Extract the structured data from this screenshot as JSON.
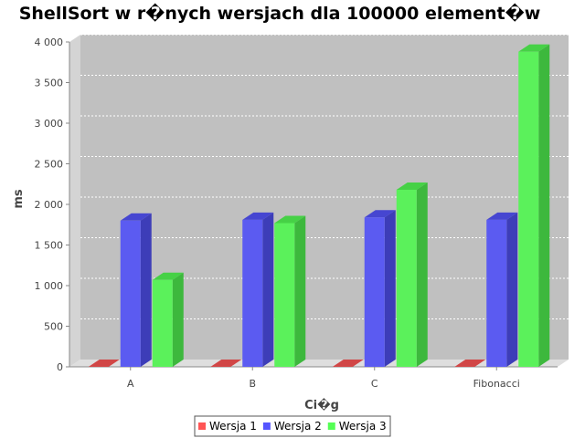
{
  "chart_data": {
    "type": "bar",
    "title": "ShellSort w r�nych wersjach dla 100000 element�w",
    "xlabel": "Ci�g",
    "ylabel": "ms",
    "categories": [
      "A",
      "B",
      "C",
      "Fibonacci"
    ],
    "series": [
      {
        "name": "Wersja 1",
        "values": [
          0,
          0,
          0,
          0
        ],
        "color": "#ff5555"
      },
      {
        "name": "Wersja 2",
        "values": [
          1800,
          1810,
          1840,
          1810
        ],
        "color": "#5555ff"
      },
      {
        "name": "Wersja 3",
        "values": [
          1070,
          1770,
          2180,
          3880
        ],
        "color": "#55ff55"
      }
    ],
    "ylim": [
      0,
      4000
    ],
    "yticks": [
      0,
      500,
      1000,
      1500,
      2000,
      2500,
      3000,
      3500,
      4000
    ],
    "ytick_labels": [
      "0",
      "500",
      "1 000",
      "1 500",
      "2 000",
      "2 500",
      "3 000",
      "3 500",
      "4 000"
    ],
    "grid": true,
    "legend_position": "bottom",
    "plot_background": "#c0c0c0"
  }
}
